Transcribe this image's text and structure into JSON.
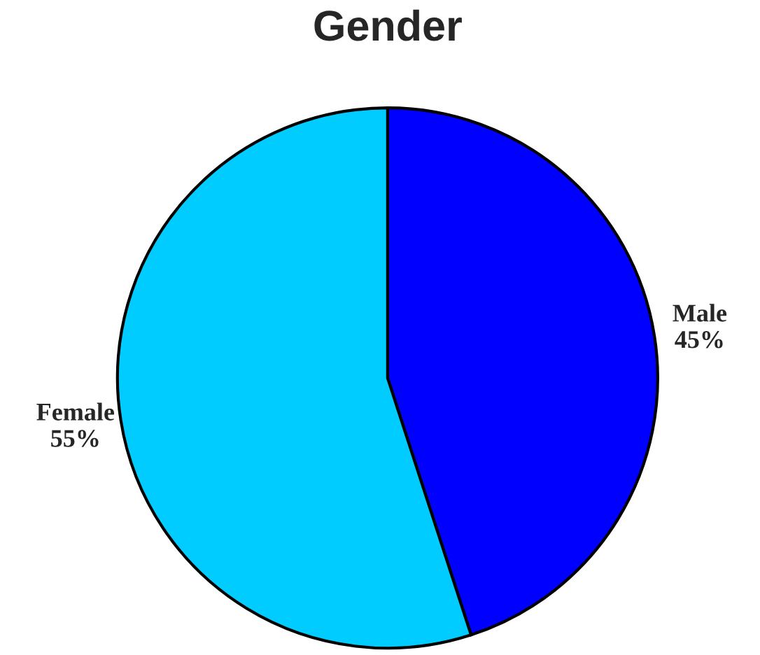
{
  "chart_data": {
    "type": "pie",
    "title": "Gender",
    "categories": [
      "Male",
      "Female"
    ],
    "values": [
      45,
      55
    ],
    "value_labels": [
      "45%",
      "55%"
    ],
    "colors": [
      "#0000ff",
      "#00ccff"
    ]
  }
}
